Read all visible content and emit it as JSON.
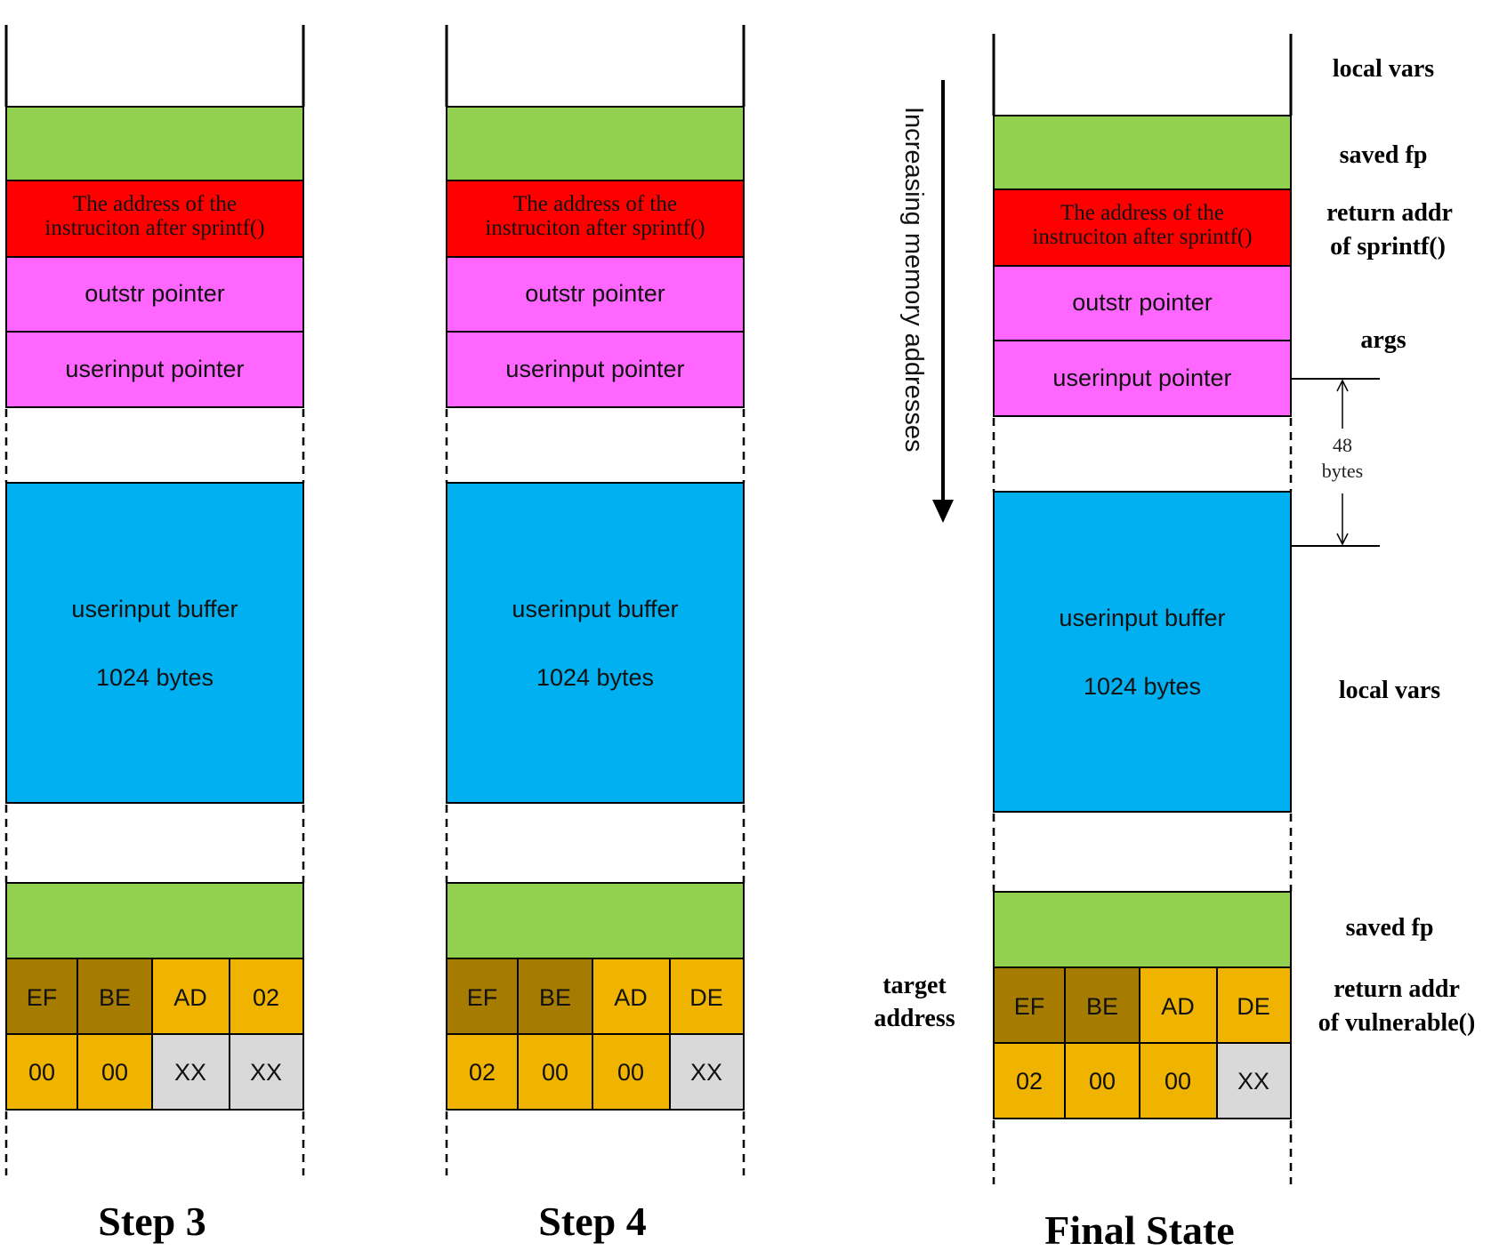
{
  "columns": [
    {
      "id": "step3",
      "caption": "Step 3",
      "blocks": {
        "ret_text": [
          "The address of the",
          "instruciton after sprintf()"
        ],
        "outstr": "outstr pointer",
        "userinput_ptr": "userinput pointer",
        "buffer": [
          "userinput buffer",
          "1024 bytes"
        ]
      },
      "bytes_row1": [
        "EF",
        "BE",
        "AD",
        "02"
      ],
      "bytes_row2": [
        "00",
        "00",
        "XX",
        "XX"
      ]
    },
    {
      "id": "step4",
      "caption": "Step 4",
      "blocks": {
        "ret_text": [
          "The address of the",
          "instruciton after sprintf()"
        ],
        "outstr": "outstr pointer",
        "userinput_ptr": "userinput pointer",
        "buffer": [
          "userinput buffer",
          "1024 bytes"
        ]
      },
      "bytes_row1": [
        "EF",
        "BE",
        "AD",
        "DE"
      ],
      "bytes_row2": [
        "02",
        "00",
        "00",
        "XX"
      ]
    },
    {
      "id": "final",
      "caption": "Final State",
      "blocks": {
        "ret_text": [
          "The address of the",
          "instruciton after sprintf()"
        ],
        "outstr": "outstr pointer",
        "userinput_ptr": "userinput pointer",
        "buffer": [
          "userinput buffer",
          "1024 bytes"
        ]
      },
      "bytes_row1": [
        "EF",
        "BE",
        "AD",
        "DE"
      ],
      "bytes_row2": [
        "02",
        "00",
        "00",
        "XX"
      ]
    }
  ],
  "arrow_label": "Increasing memory addresses",
  "gap_label": [
    "48",
    "bytes"
  ],
  "side_labels": {
    "local_vars_top": "local vars",
    "saved_fp_top": "saved fp",
    "return_addr_sprintf": [
      "return addr",
      "of sprintf()"
    ],
    "args": "args",
    "local_vars_mid": "local vars",
    "saved_fp_bottom": "saved fp",
    "return_addr_vulnerable": [
      "return addr",
      "of vulnerable()"
    ],
    "target_address": [
      "target",
      "address"
    ]
  },
  "colors": {
    "green": "#92d050",
    "red": "#ff0000",
    "magenta": "#ff66ff",
    "blue": "#00b0f0",
    "olive": "#a67c00",
    "gold": "#f0b400",
    "gray": "#d9d9d9",
    "line": "#000000"
  }
}
